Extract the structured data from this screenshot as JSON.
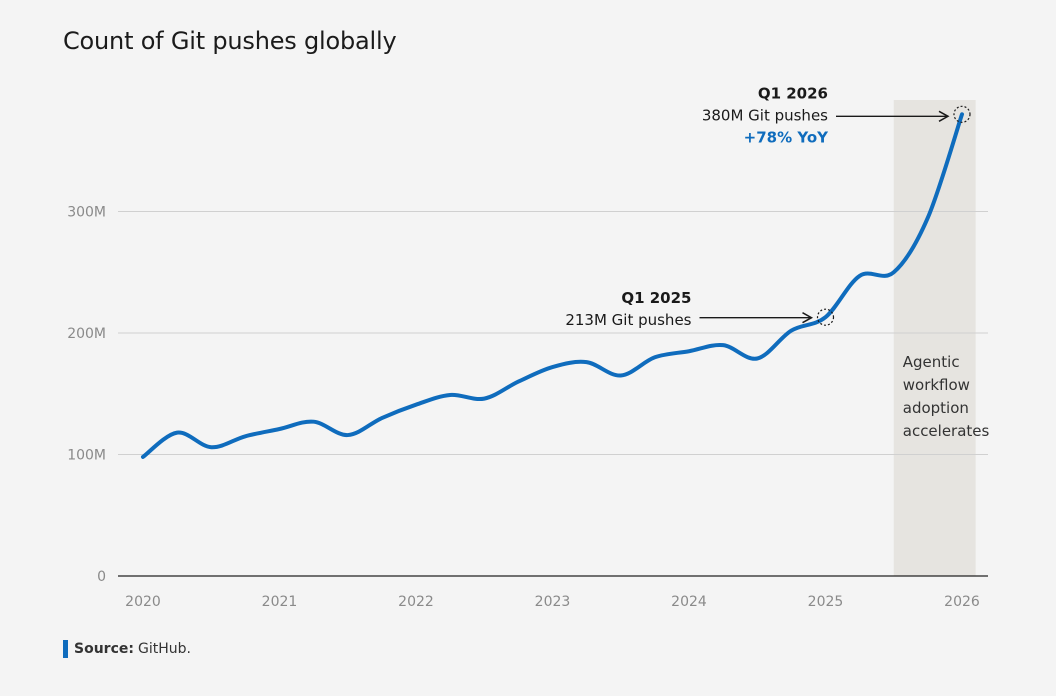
{
  "title": "Count of Git pushes globally",
  "source": {
    "label": "Source:",
    "text": "GitHub."
  },
  "chart_data": {
    "type": "line",
    "y_tick_labels": [
      {
        "value": 0,
        "label": "0"
      },
      {
        "value": 100,
        "label": "100M"
      },
      {
        "value": 200,
        "label": "200M"
      },
      {
        "value": 300,
        "label": "300M"
      }
    ],
    "x_tick_labels": [
      "2020",
      "2021",
      "2022",
      "2023",
      "2024",
      "2025",
      "2026"
    ],
    "xlim": [
      2020,
      2026
    ],
    "ylim": [
      0,
      380
    ],
    "grid": true,
    "line_color": "#0f6cbd",
    "shade_color": "#e6e4e0",
    "shaded_region": {
      "x": [
        2025.5,
        2026.1
      ],
      "label": [
        "Agentic",
        "workflow",
        "adoption",
        "accelerates"
      ]
    },
    "series": [
      {
        "x": [
          2020.0,
          2020.25,
          2020.5,
          2020.75,
          2021.0,
          2021.25,
          2021.5,
          2021.75,
          2022.0,
          2022.25,
          2022.5,
          2022.75,
          2023.0,
          2023.25,
          2023.5,
          2023.75,
          2024.0,
          2024.25,
          2024.5,
          2024.75,
          2025.0,
          2025.25,
          2025.5,
          2025.75,
          2026.0
        ],
        "values": [
          98,
          118,
          106,
          115,
          121,
          127,
          116,
          130,
          141,
          149,
          146,
          160,
          172,
          176,
          165,
          180,
          185,
          190,
          179,
          202,
          213,
          247,
          250,
          295,
          380
        ]
      }
    ],
    "annotations": [
      {
        "x": 2025.0,
        "y": 213,
        "lines": [
          "Q1 2025",
          "213M Git pushes"
        ]
      },
      {
        "x": 2026.0,
        "y": 380,
        "lines": [
          "Q1 2026",
          "380M Git pushes",
          "+78% YoY"
        ],
        "highlight": "#0f6cbd"
      }
    ]
  }
}
